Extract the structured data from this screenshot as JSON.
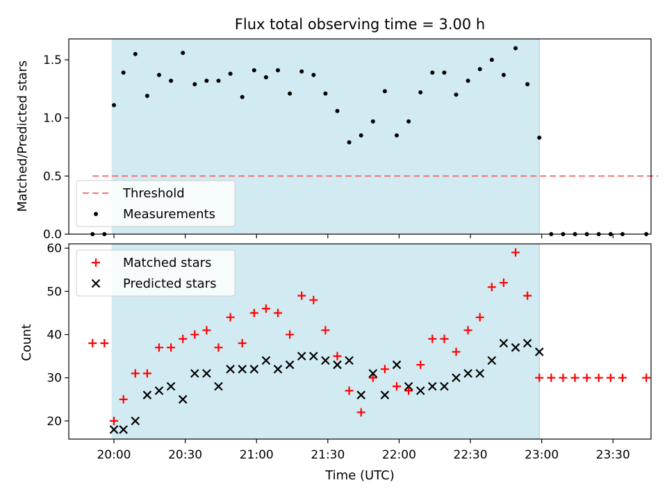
{
  "chart_data": {
    "type": "scatter",
    "title": "Flux total observing time = 3.00 h",
    "shared_x": {
      "label": "Time (UTC)",
      "ticks": [
        "20:00",
        "20:30",
        "21:00",
        "21:30",
        "22:00",
        "22:30",
        "23:00",
        "23:30"
      ],
      "range": [
        "19:41",
        "23:46"
      ]
    },
    "shaded_interval": {
      "start": "19:59",
      "end": "22:59",
      "color": "#add8e6"
    },
    "panels": [
      {
        "ylabel": "Matched/Predicted stars",
        "ylim": [
          0,
          1.68
        ],
        "yticks": [
          "0.0",
          "0.5",
          "1.0",
          "1.5"
        ],
        "legend": {
          "placement": "lower-left",
          "entries": [
            "Threshold",
            "Measurements"
          ]
        },
        "series": [
          {
            "name": "Threshold",
            "style": "dashed-line",
            "color": "#f08080",
            "points": [
              [
                "19:51",
                0.5
              ],
              [
                "23:49",
                0.5
              ]
            ]
          },
          {
            "name": "Measurements",
            "style": "dot",
            "color": "#000000",
            "points": [
              [
                "19:51",
                0.0
              ],
              [
                "19:56",
                0.0
              ],
              [
                "20:00",
                1.11
              ],
              [
                "20:04",
                1.39
              ],
              [
                "20:09",
                1.55
              ],
              [
                "20:14",
                1.19
              ],
              [
                "20:19",
                1.37
              ],
              [
                "20:24",
                1.32
              ],
              [
                "20:29",
                1.56
              ],
              [
                "20:34",
                1.29
              ],
              [
                "20:39",
                1.32
              ],
              [
                "20:44",
                1.32
              ],
              [
                "20:49",
                1.38
              ],
              [
                "20:54",
                1.18
              ],
              [
                "20:59",
                1.41
              ],
              [
                "21:04",
                1.35
              ],
              [
                "21:09",
                1.41
              ],
              [
                "21:14",
                1.21
              ],
              [
                "21:19",
                1.4
              ],
              [
                "21:24",
                1.37
              ],
              [
                "21:29",
                1.21
              ],
              [
                "21:34",
                1.06
              ],
              [
                "21:39",
                0.79
              ],
              [
                "21:44",
                0.85
              ],
              [
                "21:49",
                0.97
              ],
              [
                "21:54",
                1.23
              ],
              [
                "21:59",
                0.85
              ],
              [
                "22:04",
                0.97
              ],
              [
                "22:09",
                1.22
              ],
              [
                "22:14",
                1.39
              ],
              [
                "22:19",
                1.39
              ],
              [
                "22:24",
                1.2
              ],
              [
                "22:29",
                1.32
              ],
              [
                "22:34",
                1.42
              ],
              [
                "22:39",
                1.5
              ],
              [
                "22:44",
                1.37
              ],
              [
                "22:49",
                1.6
              ],
              [
                "22:54",
                1.29
              ],
              [
                "22:59",
                0.83
              ],
              [
                "23:04",
                0.0
              ],
              [
                "23:09",
                0.0
              ],
              [
                "23:14",
                0.0
              ],
              [
                "23:19",
                0.0
              ],
              [
                "23:24",
                0.0
              ],
              [
                "23:29",
                0.0
              ],
              [
                "23:34",
                0.0
              ],
              [
                "23:44",
                0.0
              ]
            ]
          }
        ]
      },
      {
        "ylabel": "Count",
        "ylim": [
          15.8,
          61
        ],
        "yticks": [
          "20",
          "30",
          "40",
          "50",
          "60"
        ],
        "legend": {
          "placement": "top-left",
          "entries": [
            "Matched stars",
            "Predicted stars"
          ]
        },
        "series": [
          {
            "name": "Matched stars",
            "style": "plus",
            "color": "#ff0000",
            "points": [
              [
                "19:51",
                38
              ],
              [
                "19:56",
                38
              ],
              [
                "20:00",
                20
              ],
              [
                "20:04",
                25
              ],
              [
                "20:09",
                31
              ],
              [
                "20:14",
                31
              ],
              [
                "20:19",
                37
              ],
              [
                "20:24",
                37
              ],
              [
                "20:29",
                39
              ],
              [
                "20:34",
                40
              ],
              [
                "20:39",
                41
              ],
              [
                "20:44",
                37
              ],
              [
                "20:49",
                44
              ],
              [
                "20:54",
                38
              ],
              [
                "20:59",
                45
              ],
              [
                "21:04",
                46
              ],
              [
                "21:09",
                45
              ],
              [
                "21:14",
                40
              ],
              [
                "21:19",
                49
              ],
              [
                "21:24",
                48
              ],
              [
                "21:29",
                41
              ],
              [
                "21:34",
                35
              ],
              [
                "21:39",
                27
              ],
              [
                "21:44",
                22
              ],
              [
                "21:49",
                30
              ],
              [
                "21:54",
                32
              ],
              [
                "21:59",
                28
              ],
              [
                "22:04",
                27
              ],
              [
                "22:09",
                33
              ],
              [
                "22:14",
                39
              ],
              [
                "22:19",
                39
              ],
              [
                "22:24",
                36
              ],
              [
                "22:29",
                41
              ],
              [
                "22:34",
                44
              ],
              [
                "22:39",
                51
              ],
              [
                "22:44",
                52
              ],
              [
                "22:49",
                59
              ],
              [
                "22:54",
                49
              ],
              [
                "22:59",
                30
              ],
              [
                "23:04",
                30
              ],
              [
                "23:09",
                30
              ],
              [
                "23:14",
                30
              ],
              [
                "23:19",
                30
              ],
              [
                "23:24",
                30
              ],
              [
                "23:29",
                30
              ],
              [
                "23:34",
                30
              ],
              [
                "23:44",
                30
              ]
            ]
          },
          {
            "name": "Predicted stars",
            "style": "x",
            "color": "#000000",
            "points": [
              [
                "20:00",
                18
              ],
              [
                "20:04",
                18
              ],
              [
                "20:09",
                20
              ],
              [
                "20:14",
                26
              ],
              [
                "20:19",
                27
              ],
              [
                "20:24",
                28
              ],
              [
                "20:29",
                25
              ],
              [
                "20:34",
                31
              ],
              [
                "20:39",
                31
              ],
              [
                "20:44",
                28
              ],
              [
                "20:49",
                32
              ],
              [
                "20:54",
                32
              ],
              [
                "20:59",
                32
              ],
              [
                "21:04",
                34
              ],
              [
                "21:09",
                32
              ],
              [
                "21:14",
                33
              ],
              [
                "21:19",
                35
              ],
              [
                "21:24",
                35
              ],
              [
                "21:29",
                34
              ],
              [
                "21:34",
                33
              ],
              [
                "21:39",
                34
              ],
              [
                "21:44",
                26
              ],
              [
                "21:49",
                31
              ],
              [
                "21:54",
                26
              ],
              [
                "21:59",
                33
              ],
              [
                "22:04",
                28
              ],
              [
                "22:09",
                27
              ],
              [
                "22:14",
                28
              ],
              [
                "22:19",
                28
              ],
              [
                "22:24",
                30
              ],
              [
                "22:29",
                31
              ],
              [
                "22:34",
                31
              ],
              [
                "22:39",
                34
              ],
              [
                "22:44",
                38
              ],
              [
                "22:49",
                37
              ],
              [
                "22:54",
                38
              ],
              [
                "22:59",
                36
              ]
            ]
          }
        ]
      }
    ]
  }
}
